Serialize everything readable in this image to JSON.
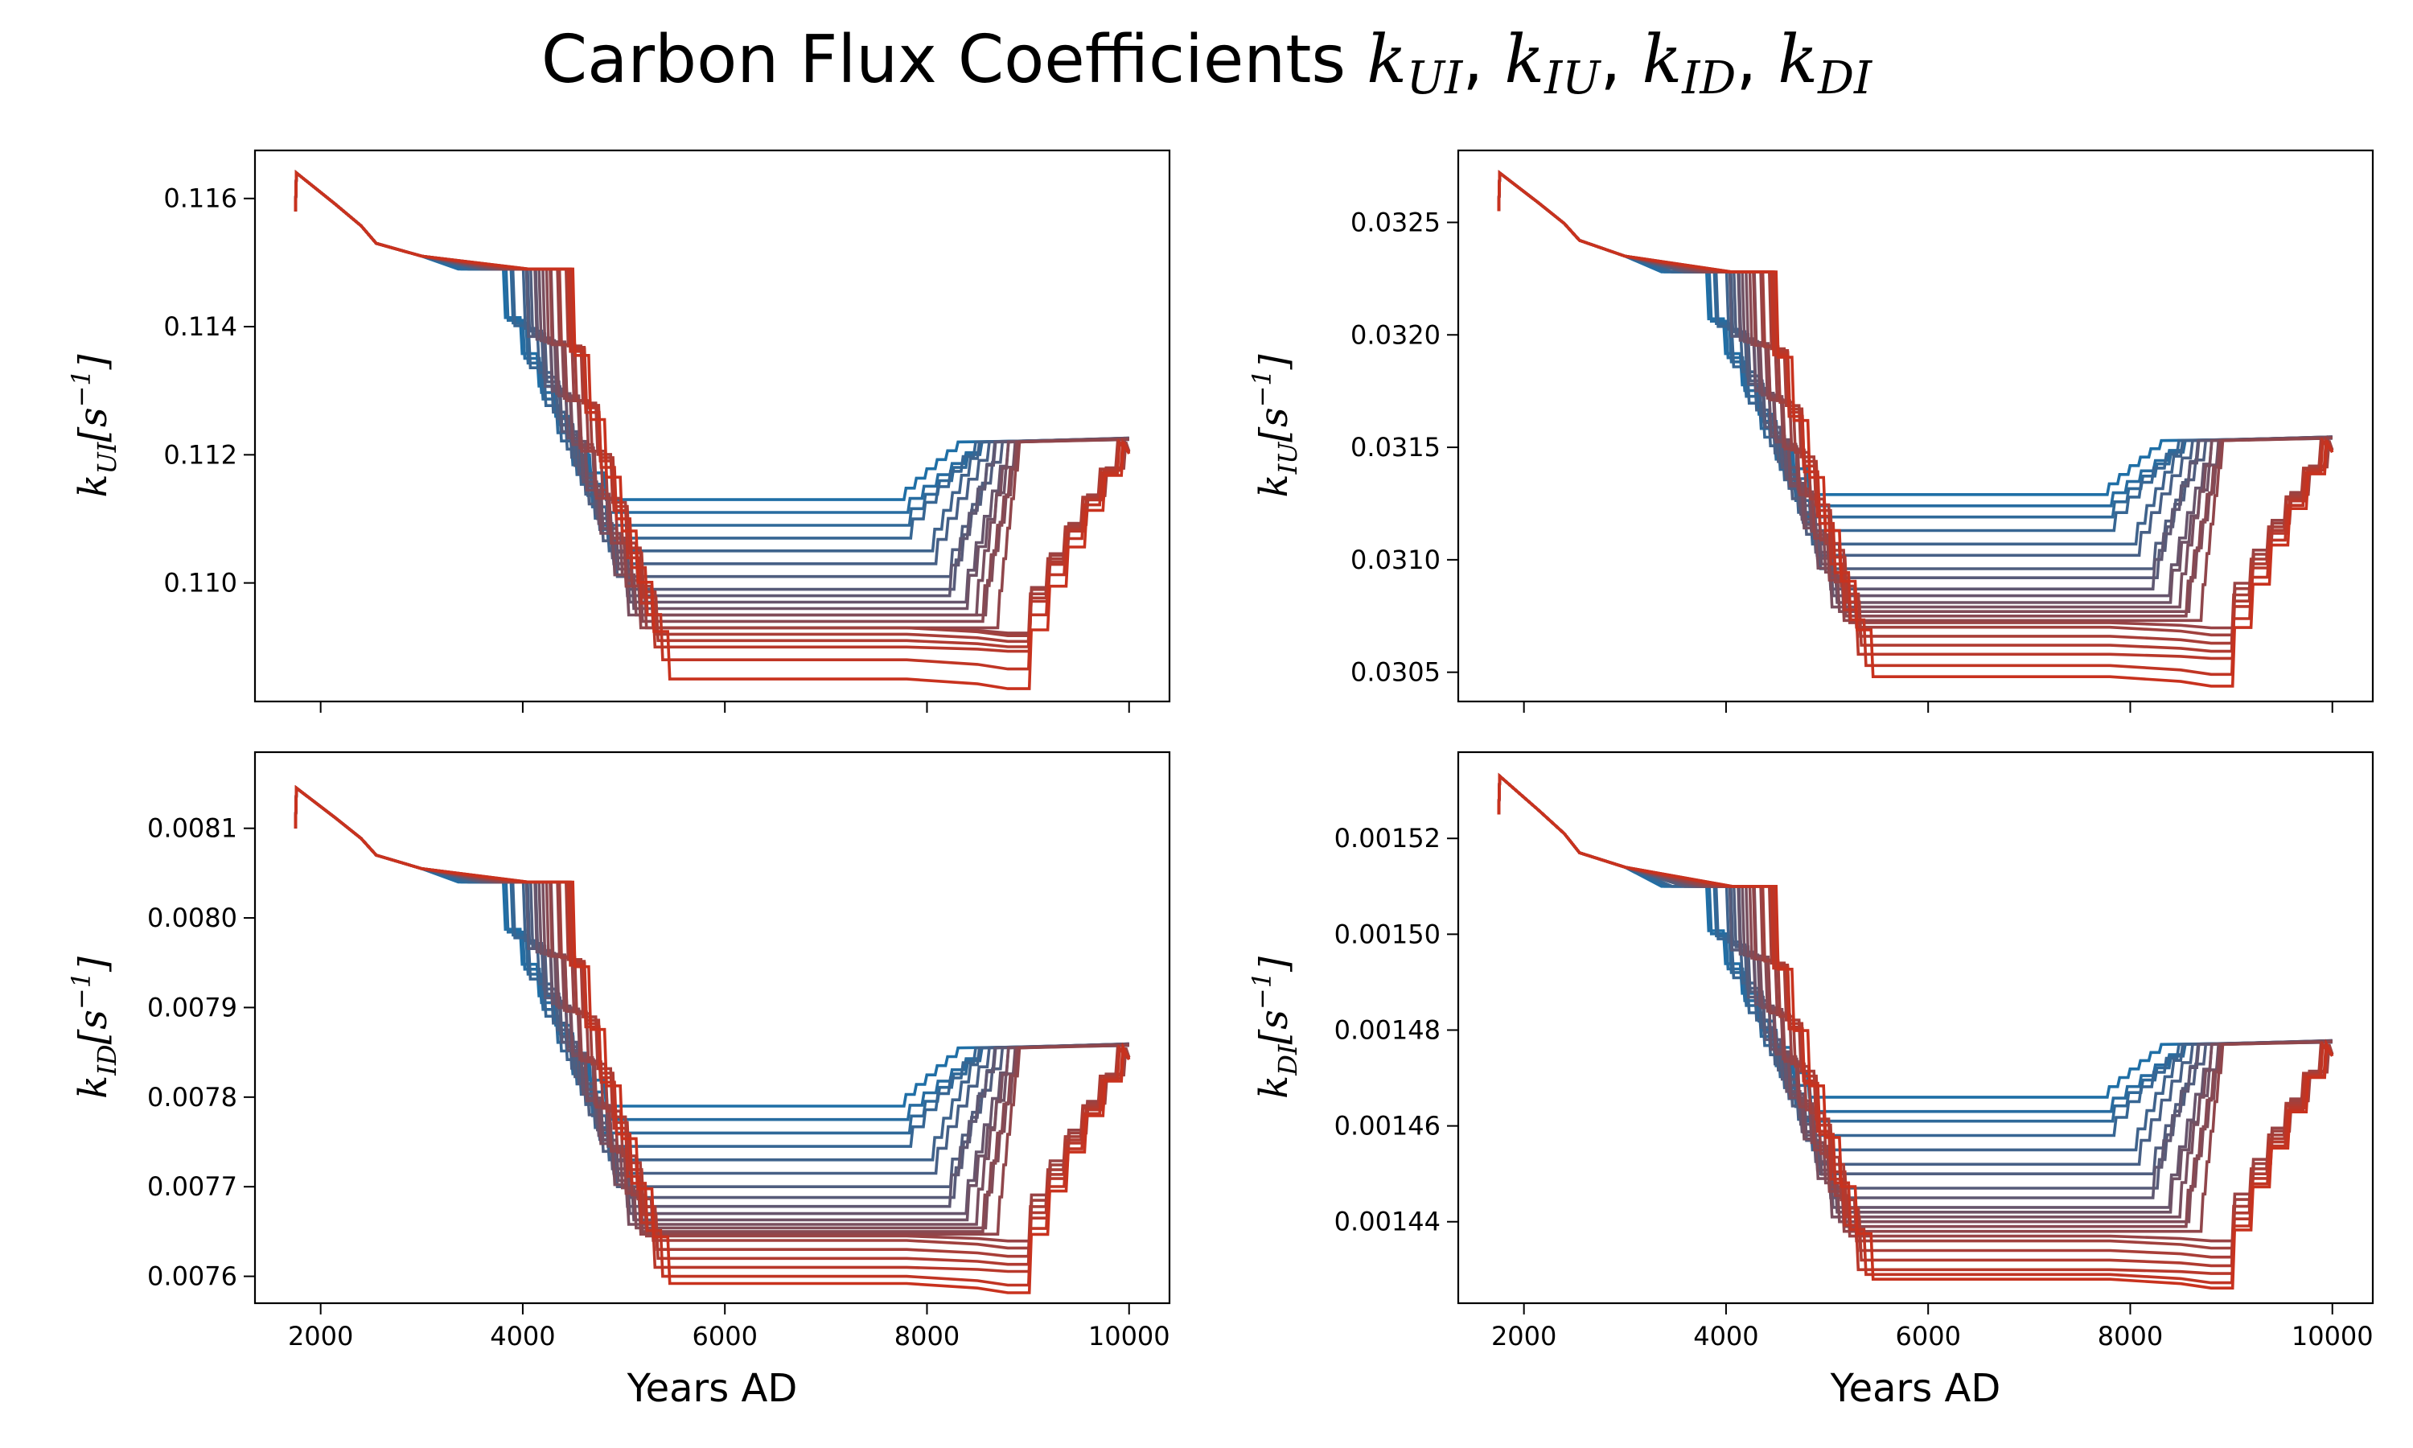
{
  "figure_title": "Carbon Flux Coefficients",
  "figure_title_math": [
    {
      "base": "k",
      "sub": "UI"
    },
    {
      "base": "k",
      "sub": "IU"
    },
    {
      "base": "k",
      "sub": "ID"
    },
    {
      "base": "k",
      "sub": "DI"
    }
  ],
  "colors": {
    "series_start": "#1f6fa6",
    "series_end": "#c8321e",
    "axes": "#000000",
    "background": "#ffffff"
  },
  "chart_data": [
    {
      "type": "line",
      "ylabel": {
        "base": "k",
        "sub": "UI",
        "unit": "[s",
        "exp": "−1",
        "close": "]"
      },
      "xlabel": "",
      "xlim": [
        1350,
        10400
      ],
      "ylim": [
        0.10815,
        0.11675
      ],
      "x_ticks": [
        2000,
        4000,
        6000,
        8000,
        10000
      ],
      "x_tick_labels": [],
      "y_ticks": [
        0.11,
        0.112,
        0.114,
        0.116
      ],
      "y_tick_labels": [
        "0.110",
        "0.112",
        "0.114",
        "0.116"
      ],
      "start": 0.1158,
      "peak": 0.1164,
      "pre_drop": 0.1153,
      "plateau_start": 0.1151,
      "shoulder": 0.1149,
      "end_level": 0.1122,
      "series_plateaus": [
        0.1113,
        0.1111,
        0.1109,
        0.1107,
        0.1105,
        0.1103,
        0.1101,
        0.1099,
        0.1098,
        0.1097,
        0.1096,
        0.1095,
        0.1095,
        0.1094,
        0.1093
      ],
      "series_dips": [
        0.1093,
        0.1093,
        0.1092,
        0.1091,
        0.109,
        0.1088,
        0.1085
      ]
    },
    {
      "type": "line",
      "ylabel": {
        "base": "k",
        "sub": "IU",
        "unit": "[s",
        "exp": "−1",
        "close": "]"
      },
      "xlabel": "",
      "xlim": [
        1350,
        10400
      ],
      "ylim": [
        0.03037,
        0.03282
      ],
      "x_ticks": [
        2000,
        4000,
        6000,
        8000,
        10000
      ],
      "x_tick_labels": [],
      "y_ticks": [
        0.0305,
        0.031,
        0.0315,
        0.032,
        0.0325
      ],
      "y_tick_labels": [
        "0.0305",
        "0.0310",
        "0.0315",
        "0.0320",
        "0.0325"
      ],
      "start": 0.03255,
      "peak": 0.03272,
      "pre_drop": 0.03242,
      "plateau_start": 0.03235,
      "shoulder": 0.03228,
      "end_level": 0.03153,
      "series_plateaus": [
        0.03129,
        0.03124,
        0.03119,
        0.03113,
        0.03107,
        0.03102,
        0.03096,
        0.03092,
        0.03087,
        0.03084,
        0.03081,
        0.03079,
        0.03077,
        0.03075,
        0.03073
      ],
      "series_dips": [
        0.03072,
        0.0307,
        0.03066,
        0.03062,
        0.03058,
        0.03053,
        0.03048
      ]
    },
    {
      "type": "line",
      "ylabel": {
        "base": "k",
        "sub": "ID",
        "unit": "[s",
        "exp": "−1",
        "close": "]"
      },
      "xlabel": "Years AD",
      "xlim": [
        1350,
        10400
      ],
      "ylim": [
        0.00757,
        0.008185
      ],
      "x_ticks": [
        2000,
        4000,
        6000,
        8000,
        10000
      ],
      "x_tick_labels": [
        "2000",
        "4000",
        "6000",
        "8000",
        "10000"
      ],
      "y_ticks": [
        0.0076,
        0.0077,
        0.0078,
        0.0079,
        0.008,
        0.0081
      ],
      "y_tick_labels": [
        "0.0076",
        "0.0077",
        "0.0078",
        "0.0079",
        "0.0080",
        "0.0081"
      ],
      "start": 0.0081,
      "peak": 0.008145,
      "pre_drop": 0.00807,
      "plateau_start": 0.008055,
      "shoulder": 0.00804,
      "end_level": 0.007855,
      "series_plateaus": [
        0.00779,
        0.007775,
        0.00776,
        0.007745,
        0.00773,
        0.007715,
        0.0077,
        0.007688,
        0.007678,
        0.00767,
        0.007663,
        0.007658,
        0.007654,
        0.00765,
        0.007647
      ],
      "series_dips": [
        0.007645,
        0.00764,
        0.00763,
        0.00762,
        0.00761,
        0.0076,
        0.007592
      ]
    },
    {
      "type": "line",
      "ylabel": {
        "base": "k",
        "sub": "DI",
        "unit": "[s",
        "exp": "−1",
        "close": "]"
      },
      "xlabel": "Years AD",
      "xlim": [
        1350,
        10400
      ],
      "ylim": [
        0.001423,
        0.001538
      ],
      "x_ticks": [
        2000,
        4000,
        6000,
        8000,
        10000
      ],
      "x_tick_labels": [
        "2000",
        "4000",
        "6000",
        "8000",
        "10000"
      ],
      "y_ticks": [
        0.00144,
        0.00146,
        0.00148,
        0.0015,
        0.00152
      ],
      "y_tick_labels": [
        "0.00144",
        "0.00146",
        "0.00148",
        "0.00150",
        "0.00152"
      ],
      "start": 0.001525,
      "peak": 0.001533,
      "pre_drop": 0.001517,
      "plateau_start": 0.001514,
      "shoulder": 0.00151,
      "end_level": 0.001477,
      "series_plateaus": [
        0.001466,
        0.001463,
        0.001461,
        0.001458,
        0.001455,
        0.001452,
        0.00145,
        0.001447,
        0.001445,
        0.001443,
        0.001442,
        0.001441,
        0.00144,
        0.001439,
        0.001438
      ],
      "series_dips": [
        0.001437,
        0.001436,
        0.001434,
        0.001432,
        0.00143,
        0.001429,
        0.001428
      ]
    }
  ]
}
